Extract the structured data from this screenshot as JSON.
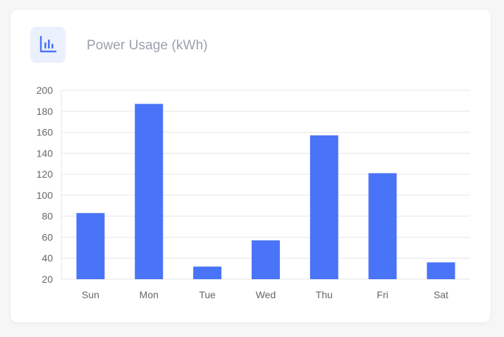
{
  "card": {
    "title": "Power Usage (kWh)",
    "icon": "bar-chart-icon",
    "accent_color": "#4a74f7",
    "icon_bg_color": "#ebf0fd"
  },
  "chart_data": {
    "type": "bar",
    "title": "Power Usage (kWh)",
    "xlabel": "",
    "ylabel": "",
    "categories": [
      "Sun",
      "Mon",
      "Tue",
      "Wed",
      "Thu",
      "Fri",
      "Sat"
    ],
    "values": [
      83,
      187,
      32,
      57,
      157,
      121,
      36
    ],
    "ylim": [
      20,
      200
    ],
    "yticks": [
      "20",
      "40",
      "60",
      "80",
      "100",
      "120",
      "140",
      "160",
      "180",
      "200"
    ],
    "grid": true,
    "legend": "none",
    "bar_color": "#4a74f7"
  }
}
